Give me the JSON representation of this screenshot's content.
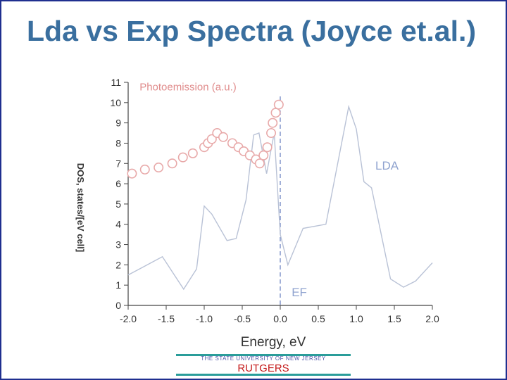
{
  "slide": {
    "title": "Lda vs Exp Spectra (Joyce et.al.)",
    "footer_university": "THE STATE UNIVERSITY OF NEW JERSEY",
    "footer_name": "RUTGERS"
  },
  "colors": {
    "title": "#3a6f9f",
    "border": "#1f2f8f",
    "lda_line": "#b9c2d6",
    "photoemission_markers": "#e8a9a9",
    "photoemission_label": "#e08c8c",
    "label_blue": "#8fa3cf",
    "axis": "#444444",
    "footer_rule": "#2a9d9a",
    "footer_name": "#c41a1a"
  },
  "chart_data": {
    "type": "line",
    "xlabel": "Energy, eV",
    "ylabel": "DOS, states/[eV cell]",
    "xlim": [
      -2.0,
      2.0
    ],
    "ylim": [
      0,
      11
    ],
    "x_ticks": [
      "-2.0",
      "-1.5",
      "-1.0",
      "-0.5",
      "0.0",
      "0.5",
      "1.0",
      "1.5",
      "2.0"
    ],
    "y_ticks": [
      "0",
      "1",
      "2",
      "3",
      "4",
      "5",
      "6",
      "7",
      "8",
      "9",
      "10",
      "11"
    ],
    "grid": false,
    "series": [
      {
        "name": "LDA",
        "style": "line",
        "x": [
          -2.0,
          -1.75,
          -1.55,
          -1.27,
          -1.1,
          -1.0,
          -0.9,
          -0.7,
          -0.58,
          -0.45,
          -0.35,
          -0.28,
          -0.18,
          -0.08,
          -0.04,
          0.0,
          0.1,
          0.3,
          0.6,
          0.9,
          1.0,
          1.1,
          1.2,
          1.45,
          1.62,
          1.78,
          2.0
        ],
        "y": [
          1.5,
          2.0,
          2.4,
          0.8,
          1.8,
          4.9,
          4.5,
          3.2,
          3.3,
          5.2,
          8.4,
          8.5,
          6.5,
          8.5,
          6.0,
          3.5,
          2.0,
          3.8,
          4.0,
          9.8,
          8.7,
          6.1,
          5.8,
          1.3,
          0.9,
          1.2,
          2.1
        ]
      },
      {
        "name": "Photoemission (a.u.)",
        "style": "markers",
        "x": [
          -1.95,
          -1.78,
          -1.6,
          -1.42,
          -1.28,
          -1.15,
          -1.0,
          -0.95,
          -0.9,
          -0.83,
          -0.75,
          -0.63,
          -0.55,
          -0.48,
          -0.4,
          -0.32,
          -0.27,
          -0.22,
          -0.17,
          -0.12,
          -0.1,
          -0.06,
          -0.02
        ],
        "y": [
          6.5,
          6.7,
          6.8,
          7.0,
          7.3,
          7.5,
          7.8,
          8.0,
          8.2,
          8.5,
          8.3,
          8.0,
          7.8,
          7.6,
          7.4,
          7.2,
          7.0,
          7.4,
          7.8,
          8.5,
          9.0,
          9.5,
          9.9
        ]
      }
    ],
    "annotations": [
      {
        "text": "Photoemission (a.u.)",
        "x": -1.85,
        "y": 10.6
      },
      {
        "text": "LDA",
        "x": 1.25,
        "y": 6.7
      },
      {
        "text": "EF",
        "x": 0.15,
        "y": 0.45
      }
    ],
    "fermi_level_x": 0.0
  }
}
